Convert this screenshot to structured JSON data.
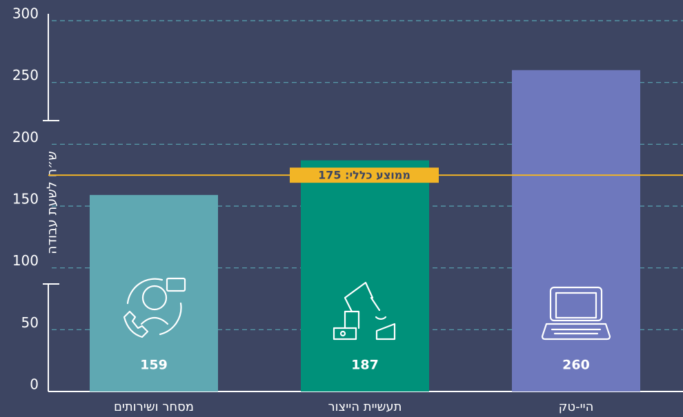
{
  "chart_data": {
    "type": "bar",
    "y_label": "ש״ח לשעת עבודה",
    "categories": [
      "מסחר ושירותים",
      "תעשיית הייצור",
      "היי-טק"
    ],
    "values": [
      159,
      187,
      260
    ],
    "colors": [
      "#5fa8b2",
      "#00917a",
      "#6e78bd"
    ],
    "average": {
      "value": 175,
      "label": "ממוצע כללי: 175",
      "color": "#f2b526"
    },
    "ylim": [
      0,
      300
    ],
    "yticks": [
      0,
      50,
      100,
      150,
      200,
      250,
      300
    ],
    "grid": true
  }
}
